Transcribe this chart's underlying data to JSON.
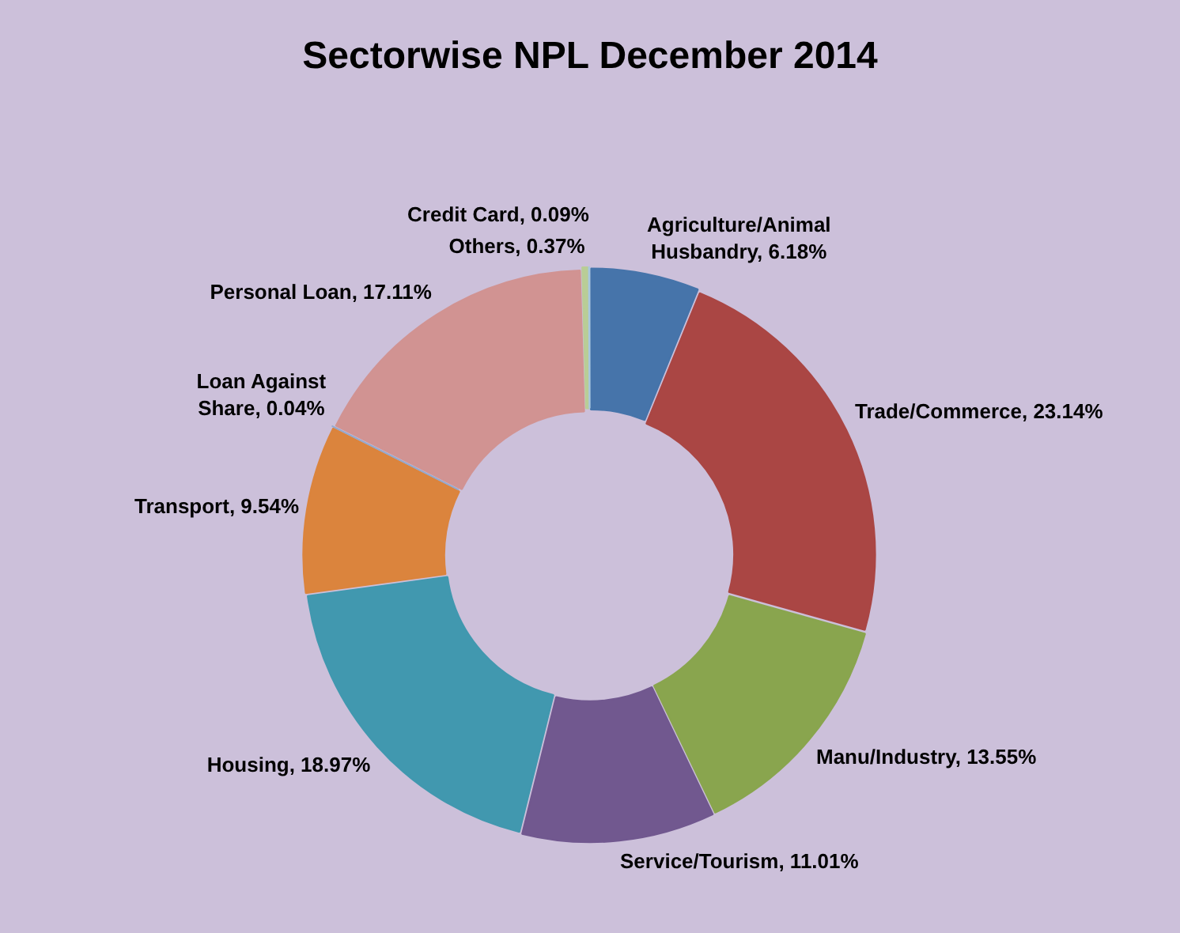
{
  "chart_data": {
    "type": "donut",
    "title": "Sectorwise NPL December 2014",
    "categories": [
      "Agriculture/Animal Husbandry",
      "Trade/Commerce",
      "Manu/Industry",
      "Service/Tourism",
      "Housing",
      "Transport",
      "Loan Against Share",
      "Personal Loan",
      "Others",
      "Credit Card"
    ],
    "values": [
      6.18,
      23.14,
      13.55,
      11.01,
      18.97,
      9.54,
      0.04,
      17.11,
      0.37,
      0.09
    ],
    "value_labels": [
      "6.18%",
      "23.14%",
      "13.55%",
      "11.01%",
      "18.97%",
      "9.54%",
      "0.04%",
      "17.11%",
      "0.37%",
      "0.09%"
    ],
    "colors": [
      "#4674aa",
      "#aa4644",
      "#89a54e",
      "#71588f",
      "#4198af",
      "#db843d",
      "#93a9cf",
      "#d19392",
      "#b9cd96",
      "#a9c8e0"
    ],
    "legend": false
  }
}
